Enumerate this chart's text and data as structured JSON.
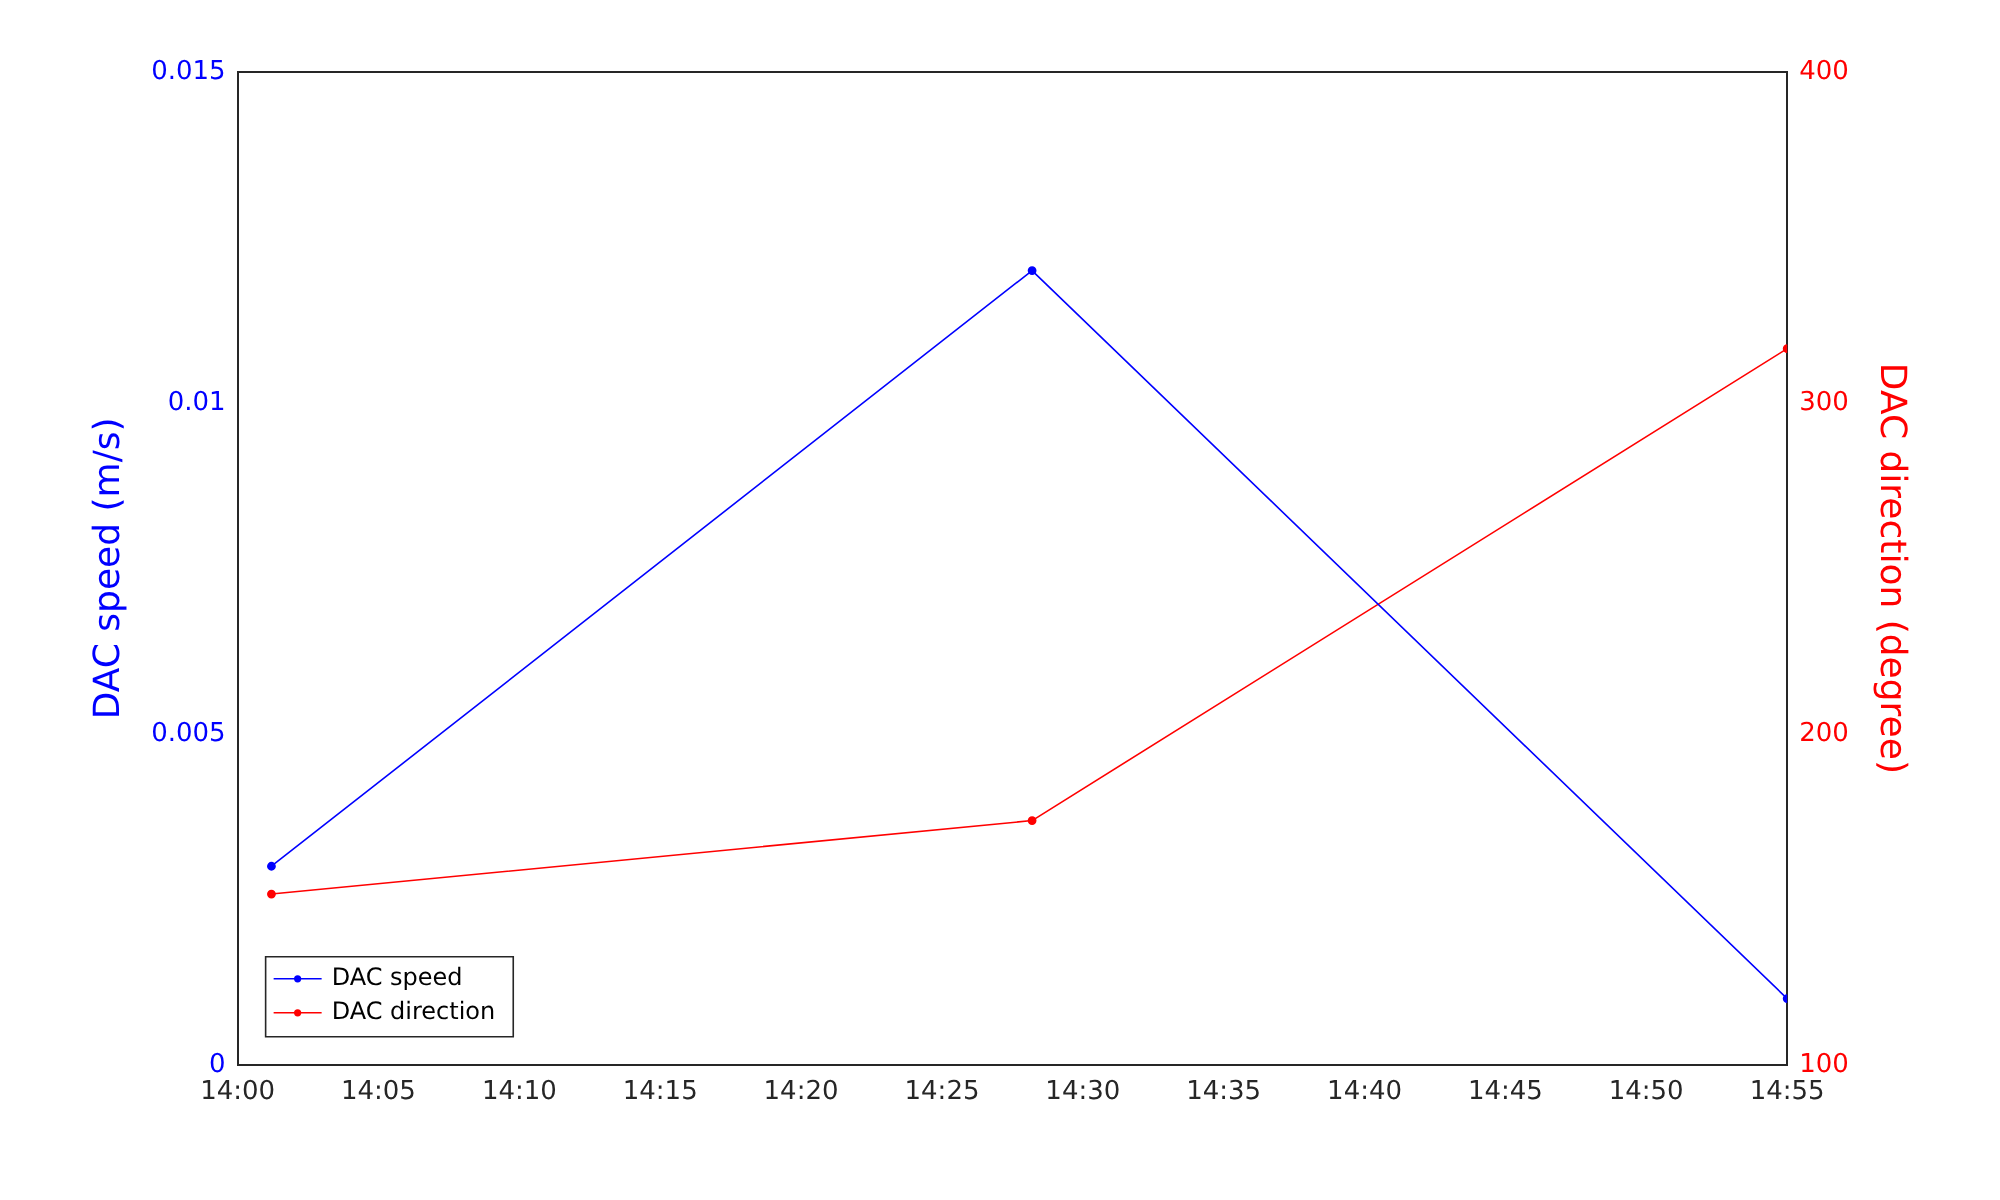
{
  "chart_data": {
    "type": "line",
    "ylabel": "DAC speed (m/s)",
    "y2label": "DAC direction (degree)",
    "x": [
      14.02,
      14.47,
      14.9167
    ],
    "series": [
      {
        "name": "DAC speed",
        "color": "#0000ff",
        "values": [
          0.003,
          0.012,
          0.001
        ]
      },
      {
        "name": "DAC direction",
        "color": "#ff0000",
        "values": [
          151.6,
          173.8,
          316.4
        ],
        "axis": "y2"
      }
    ],
    "xlim": [
      14,
      14.9167
    ],
    "xticks": [
      {
        "value": 14,
        "label": "14:00"
      },
      {
        "value": 14.0833,
        "label": "14:05"
      },
      {
        "value": 14.1667,
        "label": "14:10"
      },
      {
        "value": 14.25,
        "label": "14:15"
      },
      {
        "value": 14.3333,
        "label": "14:20"
      },
      {
        "value": 14.4167,
        "label": "14:25"
      },
      {
        "value": 14.5,
        "label": "14:30"
      },
      {
        "value": 14.5833,
        "label": "14:35"
      },
      {
        "value": 14.6667,
        "label": "14:40"
      },
      {
        "value": 14.75,
        "label": "14:45"
      },
      {
        "value": 14.8333,
        "label": "14:50"
      },
      {
        "value": 14.9167,
        "label": "14:55"
      }
    ],
    "ylim": [
      0,
      0.015
    ],
    "yticks": [
      0,
      0.005,
      0.01,
      0.015
    ],
    "y2lim": [
      100,
      400
    ],
    "y2ticks": [
      100,
      200,
      300,
      400
    ],
    "grid": false,
    "legend": "bottom left",
    "marker": "circle",
    "line_style": "solid"
  }
}
